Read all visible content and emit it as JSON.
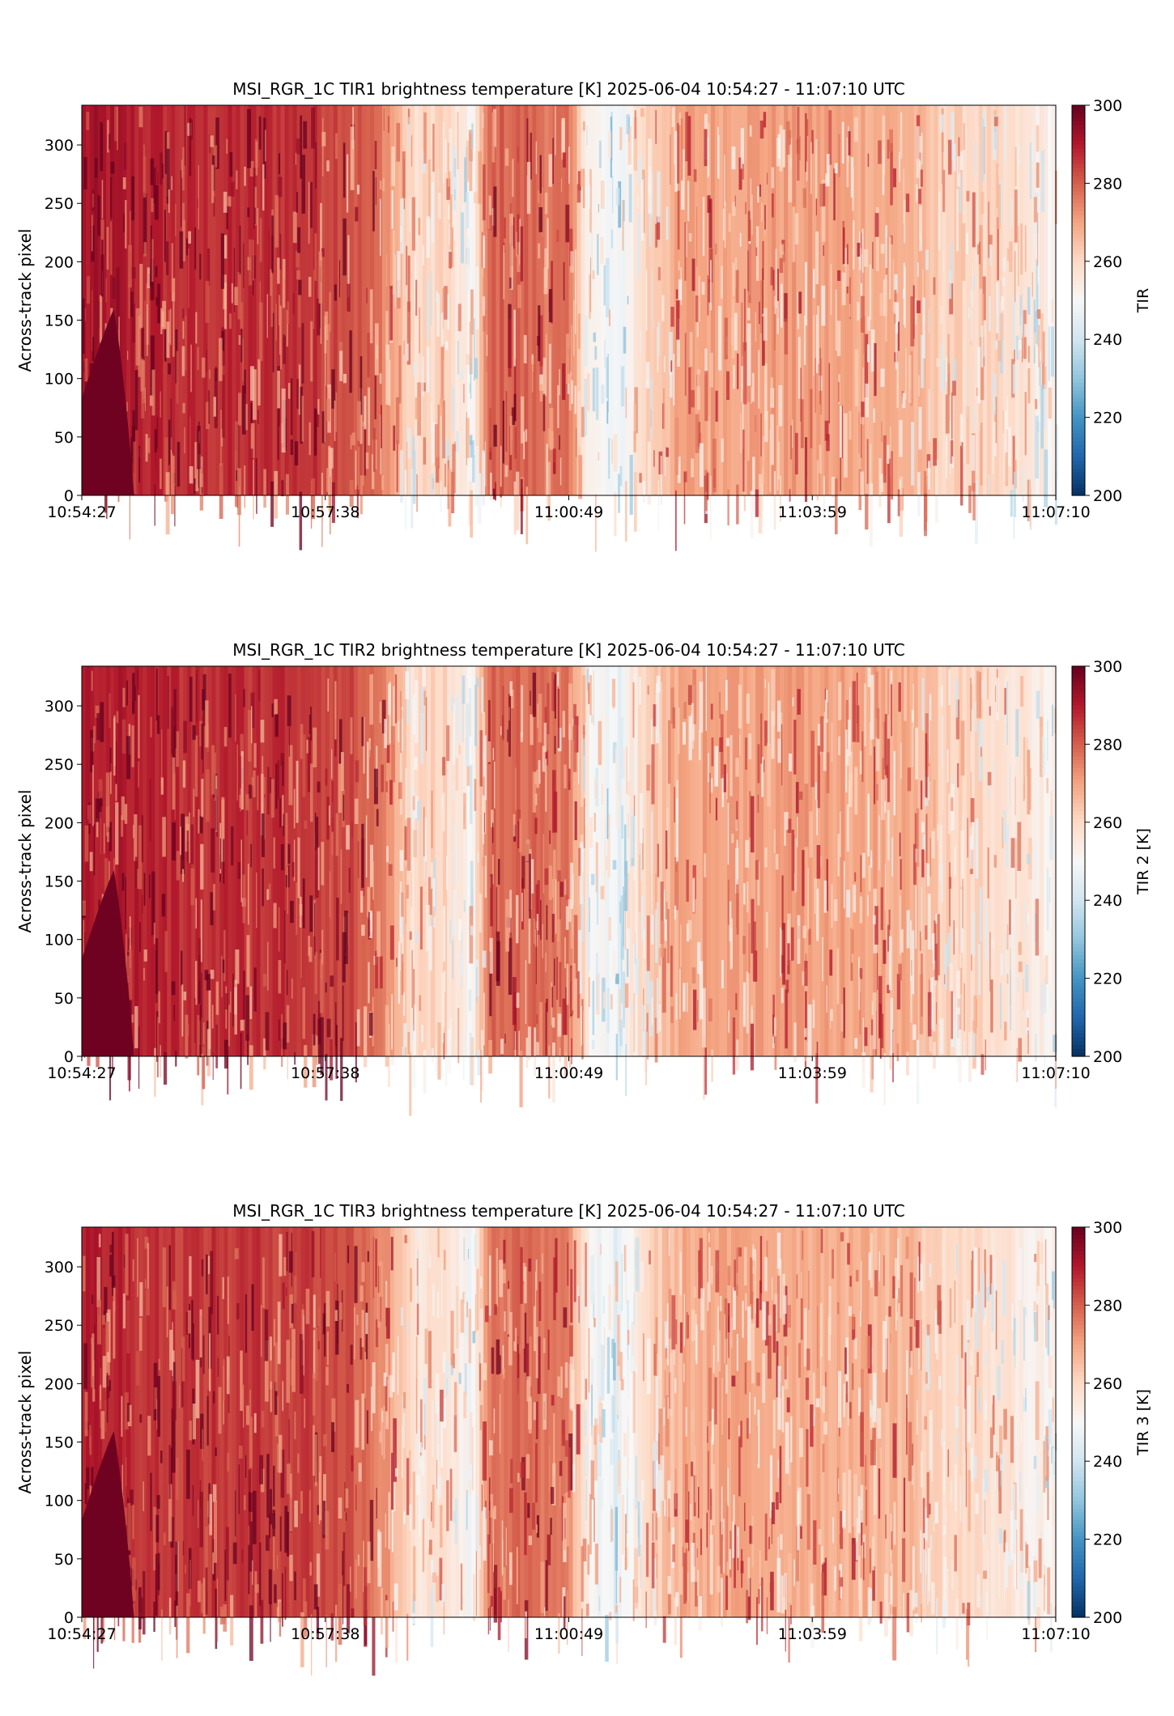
{
  "chart_data": [
    {
      "type": "heatmap",
      "title": "MSI_RGR_1C TIR1 brightness temperature [K]    2025-06-04    10:54:27 - 11:07:10 UTC",
      "xlabel": "",
      "ylabel": "Across-track pixel",
      "x_tick_labels": [
        "10:54:27",
        "10:57:38",
        "11:00:49",
        "11:03:59",
        "11:07:10"
      ],
      "y_ticks": [
        0,
        50,
        100,
        150,
        200,
        250,
        300
      ],
      "ylim": [
        0,
        334
      ],
      "colorbar": {
        "label": "TIR",
        "ticks": [
          200,
          220,
          240,
          260,
          280,
          300
        ],
        "range": [
          200,
          300
        ],
        "colormap": "RdBu_r"
      },
      "grid": false
    },
    {
      "type": "heatmap",
      "title": "MSI_RGR_1C TIR2 brightness temperature [K]    2025-06-04    10:54:27 - 11:07:10 UTC",
      "xlabel": "",
      "ylabel": "Across-track pixel",
      "x_tick_labels": [
        "10:54:27",
        "10:57:38",
        "11:00:49",
        "11:03:59",
        "11:07:10"
      ],
      "y_ticks": [
        0,
        50,
        100,
        150,
        200,
        250,
        300
      ],
      "ylim": [
        0,
        334
      ],
      "colorbar": {
        "label": "TIR 2 [K]",
        "ticks": [
          200,
          220,
          240,
          260,
          280,
          300
        ],
        "range": [
          200,
          300
        ],
        "colormap": "RdBu_r"
      },
      "grid": false
    },
    {
      "type": "heatmap",
      "title": "MSI_RGR_1C TIR3 brightness temperature [K]    2025-06-04    10:54:27 - 11:07:10 UTC",
      "xlabel": "",
      "ylabel": "Across-track pixel",
      "x_tick_labels": [
        "10:54:27",
        "10:57:38",
        "11:00:49",
        "11:03:59",
        "11:07:10"
      ],
      "y_ticks": [
        0,
        50,
        100,
        150,
        200,
        250,
        300
      ],
      "ylim": [
        0,
        334
      ],
      "colorbar": {
        "label": "TIR 3 [K]",
        "ticks": [
          200,
          220,
          240,
          260,
          280,
          300
        ],
        "range": [
          200,
          300
        ],
        "colormap": "RdBu_r"
      },
      "grid": false
    }
  ]
}
